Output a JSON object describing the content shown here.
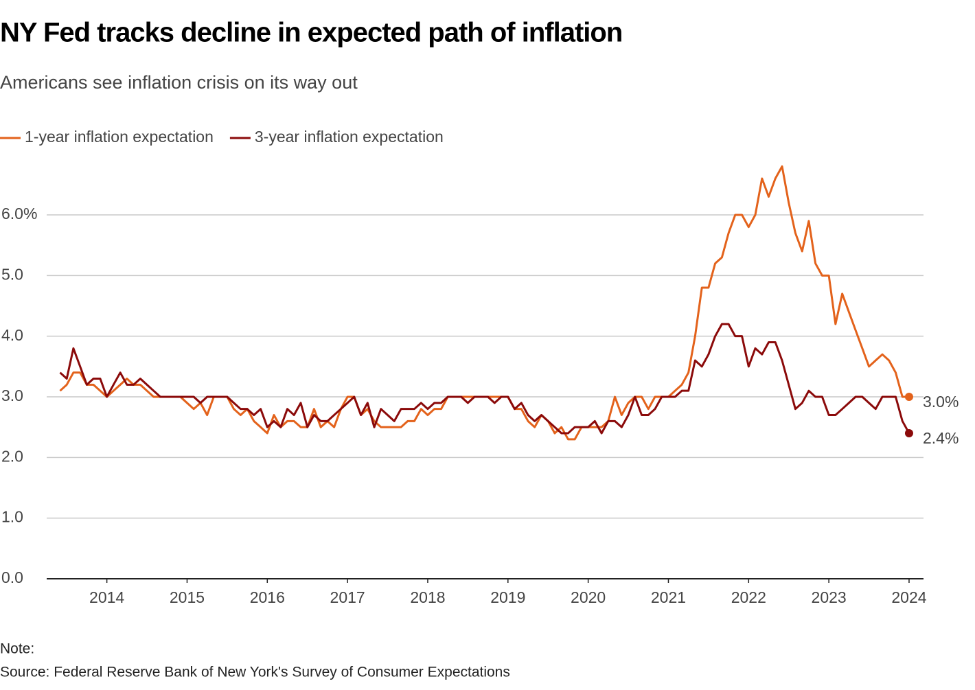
{
  "chart_data": {
    "type": "line",
    "title": "NY Fed tracks decline in expected path of inflation",
    "subtitle": "Americans see inflation crisis on its way out",
    "note": "Note:",
    "source": "Source: Federal Reserve Bank of New York's Survey of Consumer Expectations",
    "x": [
      2013.417,
      2013.5,
      2013.583,
      2013.667,
      2013.75,
      2013.833,
      2013.917,
      2014,
      2014.083,
      2014.167,
      2014.25,
      2014.333,
      2014.417,
      2014.5,
      2014.583,
      2014.667,
      2014.75,
      2014.833,
      2014.917,
      2015,
      2015.083,
      2015.167,
      2015.25,
      2015.333,
      2015.417,
      2015.5,
      2015.583,
      2015.667,
      2015.75,
      2015.833,
      2015.917,
      2016,
      2016.083,
      2016.167,
      2016.25,
      2016.333,
      2016.417,
      2016.5,
      2016.583,
      2016.667,
      2016.75,
      2016.833,
      2016.917,
      2017,
      2017.083,
      2017.167,
      2017.25,
      2017.333,
      2017.417,
      2017.5,
      2017.583,
      2017.667,
      2017.75,
      2017.833,
      2017.917,
      2018,
      2018.083,
      2018.167,
      2018.25,
      2018.333,
      2018.417,
      2018.5,
      2018.583,
      2018.667,
      2018.75,
      2018.833,
      2018.917,
      2019,
      2019.083,
      2019.167,
      2019.25,
      2019.333,
      2019.417,
      2019.5,
      2019.583,
      2019.667,
      2019.75,
      2019.833,
      2019.917,
      2020,
      2020.083,
      2020.167,
      2020.25,
      2020.333,
      2020.417,
      2020.5,
      2020.583,
      2020.667,
      2020.75,
      2020.833,
      2020.917,
      2021,
      2021.083,
      2021.167,
      2021.25,
      2021.333,
      2021.417,
      2021.5,
      2021.583,
      2021.667,
      2021.75,
      2021.833,
      2021.917,
      2022,
      2022.083,
      2022.167,
      2022.25,
      2022.333,
      2022.417,
      2022.5,
      2022.583,
      2022.667,
      2022.75,
      2022.833,
      2022.917,
      2023,
      2023.083,
      2023.167,
      2023.25,
      2023.333,
      2023.417,
      2023.5,
      2023.583,
      2023.667,
      2023.75,
      2023.833,
      2023.917,
      2024
    ],
    "series": [
      {
        "name": "1-year inflation expectation",
        "color": "#e3621b",
        "end_label": "3.0%",
        "values": [
          3.1,
          3.2,
          3.4,
          3.4,
          3.2,
          3.2,
          3.1,
          3.0,
          3.1,
          3.2,
          3.3,
          3.2,
          3.2,
          3.1,
          3.0,
          3.0,
          3.0,
          3.0,
          3.0,
          2.9,
          2.8,
          2.9,
          2.7,
          3.0,
          3.0,
          3.0,
          2.8,
          2.7,
          2.8,
          2.6,
          2.5,
          2.4,
          2.7,
          2.5,
          2.6,
          2.6,
          2.5,
          2.5,
          2.8,
          2.5,
          2.6,
          2.5,
          2.8,
          3.0,
          3.0,
          2.7,
          2.8,
          2.6,
          2.5,
          2.5,
          2.5,
          2.5,
          2.6,
          2.6,
          2.8,
          2.7,
          2.8,
          2.8,
          3.0,
          3.0,
          3.0,
          3.0,
          3.0,
          3.0,
          3.0,
          3.0,
          3.0,
          3.0,
          2.8,
          2.8,
          2.6,
          2.5,
          2.7,
          2.6,
          2.4,
          2.5,
          2.3,
          2.3,
          2.5,
          2.5,
          2.5,
          2.5,
          2.6,
          3.0,
          2.7,
          2.9,
          3.0,
          3.0,
          2.8,
          3.0,
          3.0,
          3.0,
          3.1,
          3.2,
          3.4,
          4.0,
          4.8,
          4.8,
          5.2,
          5.3,
          5.7,
          6.0,
          6.0,
          5.8,
          6.0,
          6.6,
          6.3,
          6.6,
          6.8,
          6.2,
          5.7,
          5.4,
          5.9,
          5.2,
          5.0,
          5.0,
          4.2,
          4.7,
          4.4,
          4.1,
          3.8,
          3.5,
          3.6,
          3.7,
          3.6,
          3.4,
          3.0,
          3.0
        ]
      },
      {
        "name": "3-year inflation expectation",
        "color": "#8b0a0a",
        "end_label": "2.4%",
        "values": [
          3.4,
          3.3,
          3.8,
          3.5,
          3.2,
          3.3,
          3.3,
          3.0,
          3.2,
          3.4,
          3.2,
          3.2,
          3.3,
          3.2,
          3.1,
          3.0,
          3.0,
          3.0,
          3.0,
          3.0,
          3.0,
          2.9,
          3.0,
          3.0,
          3.0,
          3.0,
          2.9,
          2.8,
          2.8,
          2.7,
          2.8,
          2.5,
          2.6,
          2.5,
          2.8,
          2.7,
          2.9,
          2.5,
          2.7,
          2.6,
          2.6,
          2.7,
          2.8,
          2.9,
          3.0,
          2.7,
          2.9,
          2.5,
          2.8,
          2.7,
          2.6,
          2.8,
          2.8,
          2.8,
          2.9,
          2.8,
          2.9,
          2.9,
          3.0,
          3.0,
          3.0,
          2.9,
          3.0,
          3.0,
          3.0,
          2.9,
          3.0,
          3.0,
          2.8,
          2.9,
          2.7,
          2.6,
          2.7,
          2.6,
          2.5,
          2.4,
          2.4,
          2.5,
          2.5,
          2.5,
          2.6,
          2.4,
          2.6,
          2.6,
          2.5,
          2.7,
          3.0,
          2.7,
          2.7,
          2.8,
          3.0,
          3.0,
          3.0,
          3.1,
          3.1,
          3.6,
          3.5,
          3.7,
          4.0,
          4.2,
          4.2,
          4.0,
          4.0,
          3.5,
          3.8,
          3.7,
          3.9,
          3.9,
          3.6,
          3.2,
          2.8,
          2.9,
          3.1,
          3.0,
          3.0,
          2.7,
          2.7,
          2.8,
          2.9,
          3.0,
          3.0,
          2.9,
          2.8,
          3.0,
          3.0,
          3.0,
          2.6,
          2.4
        ]
      }
    ],
    "xlim": [
      2013.25,
      2024.18
    ],
    "xticks": [
      2014,
      2015,
      2016,
      2017,
      2018,
      2019,
      2020,
      2021,
      2022,
      2023,
      2024
    ],
    "ylim": [
      0,
      6.9
    ],
    "yticks": [
      {
        "value": 0,
        "label": "0.0"
      },
      {
        "value": 1,
        "label": "1.0"
      },
      {
        "value": 2,
        "label": "2.0"
      },
      {
        "value": 3,
        "label": "3.0"
      },
      {
        "value": 4,
        "label": "4.0"
      },
      {
        "value": 5,
        "label": "5.0"
      },
      {
        "value": 6,
        "label": "6.0%"
      }
    ],
    "grid": true
  }
}
